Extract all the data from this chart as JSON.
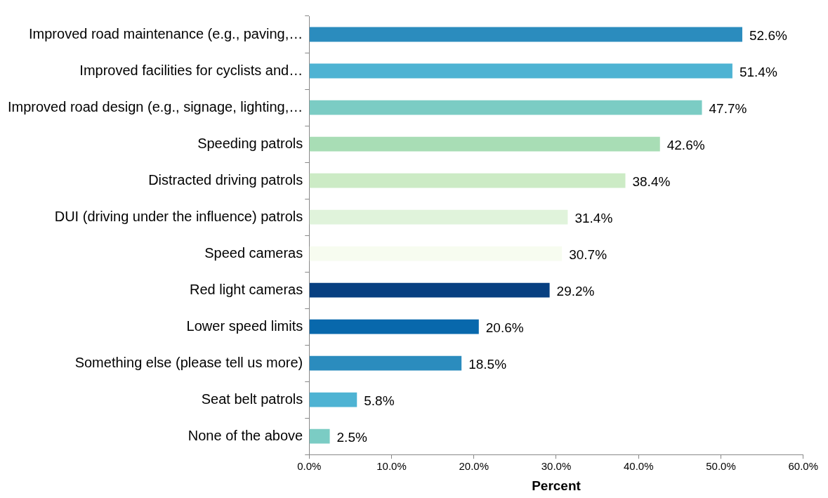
{
  "chart_data": {
    "type": "bar",
    "orientation": "horizontal",
    "xlabel": "Percent",
    "categories": [
      "Improved road maintenance (e.g., paving,…",
      "Improved facilities for cyclists and…",
      "Improved road design (e.g., signage, lighting,…",
      "Speeding patrols",
      "Distracted driving patrols",
      "DUI (driving under the influence) patrols",
      "Speed cameras",
      "Red light cameras",
      "Lower speed limits",
      "Something else (please tell us more)",
      "Seat belt patrols",
      "None of the above"
    ],
    "values": [
      52.6,
      51.4,
      47.7,
      42.6,
      38.4,
      31.4,
      30.7,
      29.2,
      20.6,
      18.5,
      5.8,
      2.5
    ],
    "value_labels": [
      "52.6%",
      "51.4%",
      "47.7%",
      "42.6%",
      "38.4%",
      "31.4%",
      "30.7%",
      "29.2%",
      "20.6%",
      "18.5%",
      "5.8%",
      "2.5%"
    ],
    "colors": [
      "#2b8cbe",
      "#4eb3d3",
      "#7bccc4",
      "#a8ddb5",
      "#ccebc5",
      "#e0f3db",
      "#f7fcf0",
      "#084081",
      "#0868ac",
      "#2b8cbe",
      "#4eb3d3",
      "#7bccc4"
    ],
    "xlim": [
      0,
      60
    ],
    "xticks": [
      {
        "value": 0,
        "label": "0.0%"
      },
      {
        "value": 10,
        "label": "10.0%"
      },
      {
        "value": 20,
        "label": "20.0%"
      },
      {
        "value": 30,
        "label": "30.0%"
      },
      {
        "value": 40,
        "label": "40.0%"
      },
      {
        "value": 50,
        "label": "50.0%"
      },
      {
        "value": 60,
        "label": "60.0%"
      }
    ],
    "grid": false,
    "legend": false
  }
}
